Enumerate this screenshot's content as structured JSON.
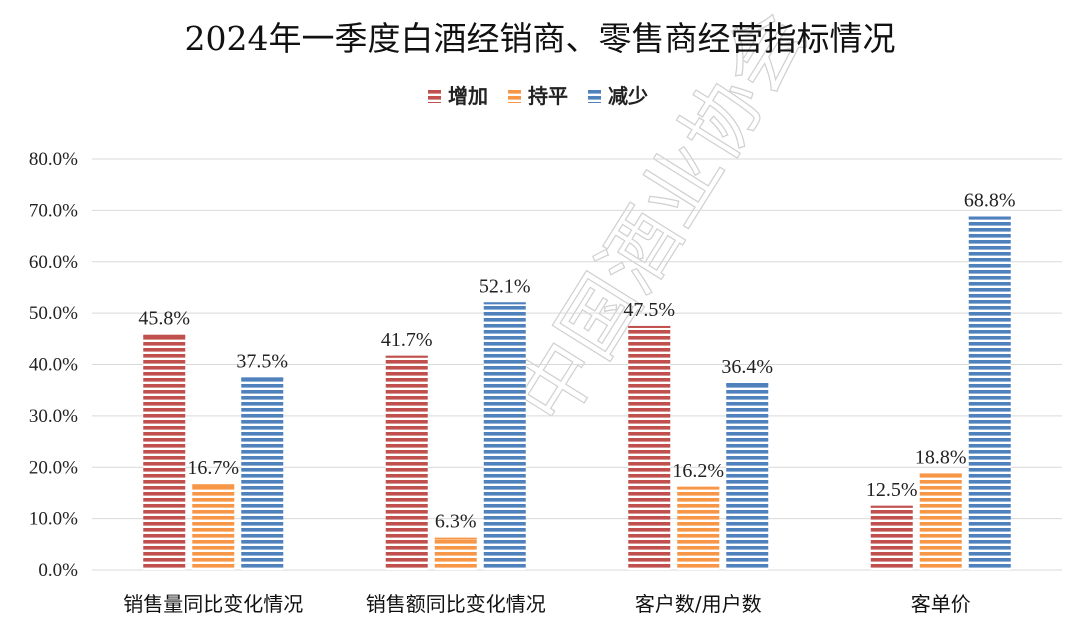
{
  "colors": {
    "increase": "#c0504d",
    "flat": "#f79646",
    "decrease": "#4f81bd",
    "stripe_gap": "#ffffff"
  },
  "watermark": "中国酒业协会",
  "chart_data": {
    "type": "bar",
    "title": "2024年一季度白酒经销商、零售商经营指标情况",
    "categories": [
      "销售量同比变化情况",
      "销售额同比变化情况",
      "客户数/用户数",
      "客单价"
    ],
    "series": [
      {
        "name": "增加",
        "values": [
          45.8,
          41.7,
          47.5,
          12.5
        ],
        "labels": [
          "45.8%",
          "41.7%",
          "47.5%",
          "12.5%"
        ]
      },
      {
        "name": "持平",
        "values": [
          16.7,
          6.3,
          16.2,
          18.8
        ],
        "labels": [
          "16.7%",
          "6.3%",
          "16.2%",
          "18.8%"
        ]
      },
      {
        "name": "减少",
        "values": [
          37.5,
          52.1,
          36.4,
          68.8
        ],
        "labels": [
          "37.5%",
          "52.1%",
          "36.4%",
          "68.8%"
        ]
      }
    ],
    "y_ticks": [
      "0.0%",
      "10.0%",
      "20.0%",
      "30.0%",
      "40.0%",
      "50.0%",
      "60.0%",
      "70.0%",
      "80.0%"
    ],
    "ylim": [
      0,
      80
    ],
    "ystep": 10,
    "grid": true,
    "legend_position": "top-center",
    "bar_pattern": "horizontal-stripes"
  }
}
